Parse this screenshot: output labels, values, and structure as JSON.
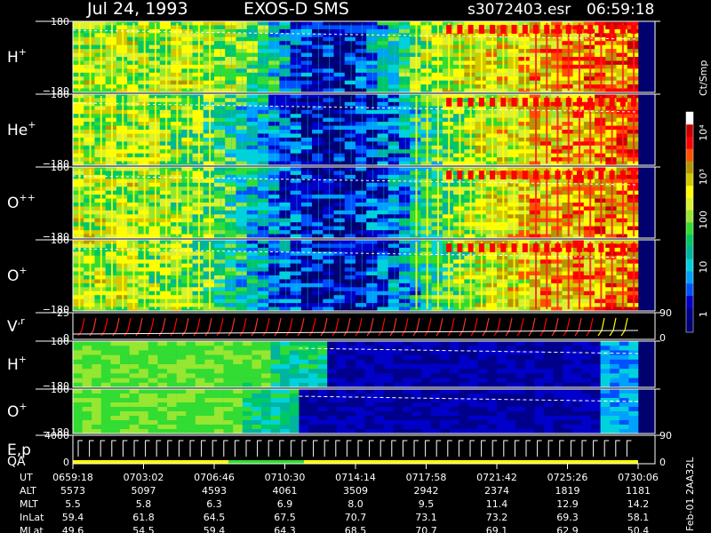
{
  "header": {
    "date": "Jul 24, 1993",
    "instrument": "EXOS-D SMS",
    "file": "s3072403.esr",
    "time": "06:59:18"
  },
  "colorbar": {
    "unit": "Ct/Smp",
    "ticks": [
      "1",
      "10",
      "100",
      "10³",
      "10⁴"
    ],
    "colors": [
      "#00006e",
      "#00008c",
      "#0000c8",
      "#0050ff",
      "#00a0ff",
      "#00d2dc",
      "#00b4a0",
      "#00c864",
      "#32dc32",
      "#96e632",
      "#dcf032",
      "#ffff00",
      "#d2c800",
      "#b49600",
      "#ff5000",
      "#ff0000",
      "#c80000",
      "#ffffff"
    ]
  },
  "side_label": "Feb-01 2AA32L",
  "chart_data": {
    "type": "heatmap",
    "x_ticks": [
      "0659:18",
      "0703:02",
      "0706:46",
      "0710:30",
      "0714:14",
      "0717:58",
      "0721:42",
      "0725:26",
      "0730:06"
    ],
    "panels": [
      {
        "key": "h",
        "label": "H",
        "sup": "+",
        "y_top": "180",
        "y_bottom": "−180",
        "kind": "pitch",
        "decay": 0.55
      },
      {
        "key": "he",
        "label": "He",
        "sup": "+",
        "y_top": "180",
        "y_bottom": "−180",
        "kind": "pitch",
        "decay": 0.85
      },
      {
        "key": "opp",
        "label": "O",
        "sup": "++",
        "y_top": "180",
        "y_bottom": "−180",
        "kind": "pitch",
        "decay": 0.85
      },
      {
        "key": "op",
        "label": "O",
        "sup": "+",
        "y_top": "180",
        "y_bottom": "−180",
        "kind": "pitch",
        "decay": 0.9
      },
      {
        "key": "vr",
        "label": "V",
        "sup": ",r",
        "y_top": "25",
        "y_bottom": "0",
        "right_top": "90",
        "right_bottom": "0",
        "kind": "line"
      },
      {
        "key": "h2",
        "label": "H",
        "sup": "+",
        "y_top": "180",
        "y_bottom": "−180",
        "kind": "flat",
        "level": "green-to-blue",
        "break": 0.35
      },
      {
        "key": "o2",
        "label": "O",
        "sup": "+",
        "y_top": "180",
        "y_bottom": "−180",
        "kind": "flat",
        "level": "green-to-blue",
        "break": 0.3
      },
      {
        "key": "ep",
        "label": "E,p",
        "label2": "QA",
        "y_top": "4000",
        "y_bottom": "0",
        "right_top": "90",
        "right_bottom": "0",
        "kind": "steps"
      }
    ],
    "ephemeris": {
      "rows": [
        {
          "name": "UT",
          "values": [
            "0659:18",
            "0703:02",
            "0706:46",
            "0710:30",
            "0714:14",
            "0717:58",
            "0721:42",
            "0725:26",
            "0730:06"
          ]
        },
        {
          "name": "ALT",
          "values": [
            "5573",
            "5097",
            "4593",
            "4061",
            "3509",
            "2942",
            "2374",
            "1819",
            "1181"
          ]
        },
        {
          "name": "MLT",
          "values": [
            "5.5",
            "5.8",
            "6.3",
            "6.9",
            "8.0",
            "9.5",
            "11.4",
            "12.9",
            "14.2"
          ]
        },
        {
          "name": "InLat",
          "values": [
            "59.4",
            "61.8",
            "64.5",
            "67.5",
            "70.7",
            "73.1",
            "73.2",
            "69.3",
            "58.1"
          ]
        },
        {
          "name": "MLat",
          "values": [
            "49.6",
            "54.5",
            "59.4",
            "64.3",
            "68.5",
            "70.7",
            "69.1",
            "62.9",
            "50.4"
          ]
        }
      ]
    }
  }
}
